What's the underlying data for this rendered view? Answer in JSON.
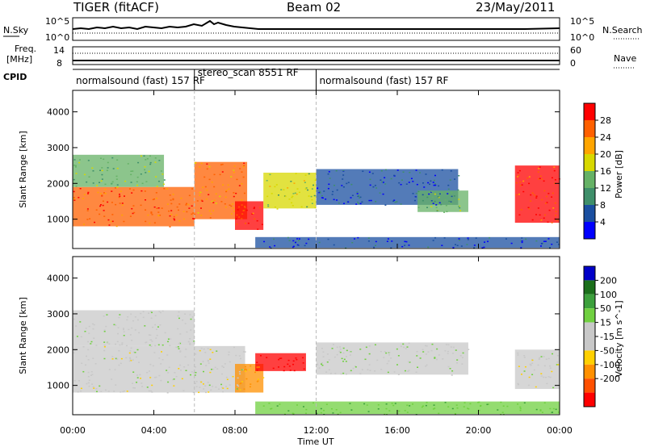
{
  "header": {
    "title": "TIGER (fitACF)",
    "beam": "Beam 02",
    "date": "23/May/2011"
  },
  "strip_labels": {
    "nsky": "N.Sky",
    "nsearch": "N.Search",
    "freq": "Freq.",
    "freq_unit": "[MHz]",
    "nave": "Nave",
    "cpid": "CPID",
    "nsky_ticks": [
      "10^5",
      "10^0"
    ],
    "nsearch_ticks": [
      "10^5",
      "10^0"
    ],
    "freq_ticks": [
      "14",
      "8"
    ],
    "nave_ticks": [
      "60",
      "0"
    ]
  },
  "cpid_segments": [
    {
      "label": "normalsound (fast) 157 RF",
      "start_h": 0,
      "end_h": 6
    },
    {
      "label": "stereo_scan 8551 RF",
      "start_h": 6,
      "end_h": 12
    },
    {
      "label": "normalsound (fast) 157 RF",
      "start_h": 12,
      "end_h": 24
    }
  ],
  "colors": {
    "power": [
      "#0000ff",
      "#1a4fa0",
      "#3f8f6a",
      "#66b266",
      "#d8d800",
      "#ffa500",
      "#ff6000",
      "#ff0000"
    ],
    "velocity": [
      "#0000c8",
      "#1b6f1b",
      "#3ca03c",
      "#70d040",
      "#c8c8c8",
      "#c8c8c8",
      "#ffd000",
      "#ff9000",
      "#ff5000",
      "#ff0000"
    ]
  },
  "chart_data": [
    {
      "type": "heatmap",
      "quantity": "power",
      "ylabel": "Slant Range [km]",
      "xlabel": "",
      "xlim": [
        0,
        24
      ],
      "ylim": [
        180,
        4600
      ],
      "yticks": [
        1000,
        2000,
        3000,
        4000
      ],
      "xticks": [
        "00:00",
        "04:00",
        "08:00",
        "12:00",
        "16:00",
        "20:00",
        "00:00"
      ],
      "colorbar": {
        "label": "Power [dB]",
        "range": [
          0,
          32
        ],
        "ticks": [
          4,
          8,
          12,
          16,
          20,
          24,
          28
        ]
      },
      "regions": [
        {
          "t0": 0.0,
          "t1": 6.0,
          "r0": 800,
          "r1": 1900,
          "value": 26
        },
        {
          "t0": 0.0,
          "t1": 4.5,
          "r0": 1900,
          "r1": 2800,
          "value": 14
        },
        {
          "t0": 6.0,
          "t1": 8.6,
          "r0": 1000,
          "r1": 2600,
          "value": 24
        },
        {
          "t0": 8.0,
          "t1": 9.4,
          "r0": 700,
          "r1": 1500,
          "value": 28
        },
        {
          "t0": 9.4,
          "t1": 12.0,
          "r0": 1300,
          "r1": 2300,
          "value": 16
        },
        {
          "t0": 12.0,
          "t1": 19.0,
          "r0": 1400,
          "r1": 2400,
          "value": 6
        },
        {
          "t0": 17.0,
          "t1": 19.5,
          "r0": 1200,
          "r1": 1800,
          "value": 14
        },
        {
          "t0": 9.0,
          "t1": 24.0,
          "r0": 200,
          "r1": 500,
          "value": 5
        },
        {
          "t0": 21.8,
          "t1": 24.0,
          "r0": 900,
          "r1": 2500,
          "value": 28
        }
      ]
    },
    {
      "type": "heatmap",
      "quantity": "velocity",
      "ylabel": "Slant Range [km]",
      "xlabel": "Time UT",
      "xlim": [
        0,
        24
      ],
      "ylim": [
        180,
        4600
      ],
      "yticks": [
        1000,
        2000,
        3000,
        4000
      ],
      "xticks": [
        "00:00",
        "04:00",
        "08:00",
        "12:00",
        "16:00",
        "20:00",
        "00:00"
      ],
      "colorbar": {
        "label": "Velocity [m s^-1]",
        "range": [
          -250,
          250
        ],
        "ticks": [
          "200",
          "100",
          "50",
          "15",
          "-15",
          "-50",
          "-100",
          "-200"
        ]
      },
      "regions": [
        {
          "t0": 0.0,
          "t1": 8.5,
          "r0": 800,
          "r1": 2100,
          "value": 0
        },
        {
          "t0": 0.0,
          "t1": 6.0,
          "r0": 2100,
          "r1": 3100,
          "value": 5
        },
        {
          "t0": 8.0,
          "t1": 9.4,
          "r0": 800,
          "r1": 1600,
          "value": -60
        },
        {
          "t0": 9.0,
          "t1": 11.5,
          "r0": 1400,
          "r1": 1900,
          "value": -220
        },
        {
          "t0": 12.0,
          "t1": 19.5,
          "r0": 1300,
          "r1": 2200,
          "value": 5
        },
        {
          "t0": 9.0,
          "t1": 24.0,
          "r0": 200,
          "r1": 550,
          "value": 40
        },
        {
          "t0": 21.8,
          "t1": 24.0,
          "r0": 900,
          "r1": 2000,
          "value": 0
        }
      ]
    }
  ]
}
